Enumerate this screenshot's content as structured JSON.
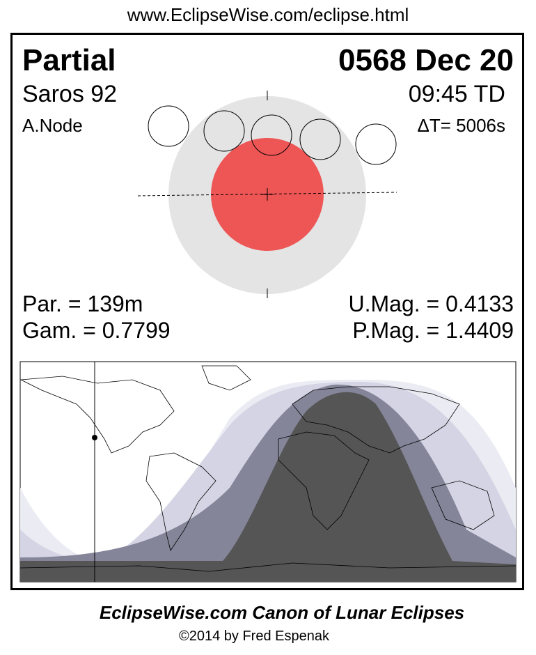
{
  "header": {
    "url": "www.EclipseWise.com/eclipse.html"
  },
  "eclipse": {
    "type": "Partial",
    "date": "0568 Dec 20",
    "saros": "Saros  92",
    "time": "09:45 TD",
    "node": "A.Node",
    "delta_t": "ΔT=   5006s",
    "par": "Par. = 139m",
    "gam": "Gam. = 0.7799",
    "umag": "U.Mag. = 0.4133",
    "pmag": "P.Mag. = 1.4409"
  },
  "colors": {
    "penumbra": "#e4e4e4",
    "umbra": "#ee5555",
    "map_dark": "#555555",
    "map_mid": "#85859a",
    "map_light": "#d4d4e4",
    "map_lightest": "#ebebf3"
  },
  "footer": {
    "credit": "EclipseWise.com Canon of Lunar Eclipses",
    "copyright": "©2014 by Fred Espenak"
  }
}
